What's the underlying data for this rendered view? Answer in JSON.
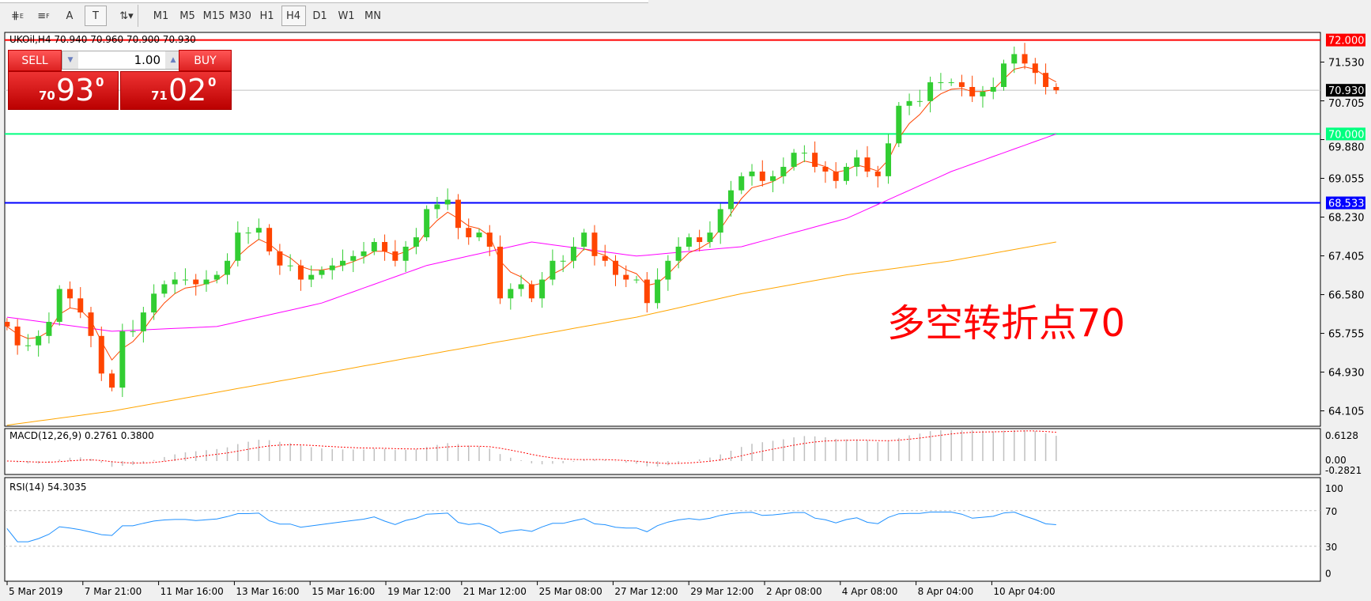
{
  "toolbar": {
    "tools": [
      {
        "name": "elliott-wave-icon",
        "glyph": "⋕",
        "sub": "E"
      },
      {
        "name": "fibonacci-icon",
        "glyph": "≡",
        "sub": "F"
      },
      {
        "name": "text-icon",
        "glyph": "A",
        "sub": ""
      },
      {
        "name": "text-label-icon",
        "glyph": "T",
        "sub": ""
      },
      {
        "name": "arrows-icon",
        "glyph": "⇅▾",
        "sub": ""
      }
    ],
    "timeframes": [
      "M1",
      "M5",
      "M15",
      "M30",
      "H1",
      "H4",
      "D1",
      "W1",
      "MN"
    ],
    "active_timeframe": "H4"
  },
  "chart_header": "UKOil,H4  70.940 70.960 70.900 70.930",
  "trade_panel": {
    "sell_label": "SELL",
    "buy_label": "BUY",
    "lot": "1.00",
    "sell_small": "70",
    "sell_big": "93",
    "sell_sup": "0",
    "buy_small": "71",
    "buy_big": "02",
    "buy_sup": "0"
  },
  "annotation": "多空转折点70",
  "colors": {
    "bull": "#32cd32",
    "bear": "#ff4500",
    "ma_fast": "#ff4500",
    "ma_mid": "#ff00ff",
    "ma_slow": "#ffa500",
    "rsi": "#1e90ff",
    "macd_signal": "#ff0000",
    "macd_hist": "#c0c0c0"
  },
  "chart_data": {
    "type": "candlestick",
    "symbol": "UKOil",
    "timeframe": "H4",
    "price_axis": {
      "ticks": [
        "71.530",
        "70.705",
        "69.880",
        "69.055",
        "68.230",
        "67.405",
        "66.580",
        "65.755",
        "64.930",
        "64.105"
      ],
      "range": [
        63.77,
        72.15
      ]
    },
    "horizontal_lines": [
      {
        "price": 72.0,
        "label": "72.000",
        "color": "#ff0000"
      },
      {
        "price": 70.0,
        "label": "70.000",
        "color": "#00ff7f"
      },
      {
        "price": 68.533,
        "label": "68.533",
        "color": "#0000ff"
      },
      {
        "price": 70.93,
        "label": "70.930",
        "color": "#000000",
        "current": true
      }
    ],
    "time_labels": [
      "5 Mar 2019",
      "7 Mar 21:00",
      "11 Mar 16:00",
      "13 Mar 16:00",
      "15 Mar 16:00",
      "19 Mar 12:00",
      "21 Mar 12:00",
      "25 Mar 08:00",
      "27 Mar 12:00",
      "29 Mar 12:00",
      "2 Apr 08:00",
      "4 Apr 08:00",
      "8 Apr 04:00",
      "10 Apr 04:00"
    ],
    "closes": [
      65.9,
      65.5,
      65.5,
      65.7,
      66.0,
      66.7,
      66.5,
      66.2,
      65.7,
      64.9,
      64.6,
      65.8,
      65.8,
      66.2,
      66.6,
      66.8,
      66.9,
      66.9,
      66.8,
      66.9,
      67.0,
      67.3,
      67.9,
      67.9,
      68.0,
      67.5,
      67.2,
      67.2,
      66.9,
      67.0,
      67.1,
      67.2,
      67.3,
      67.4,
      67.5,
      67.7,
      67.5,
      67.3,
      67.6,
      67.8,
      68.4,
      68.5,
      68.6,
      68.0,
      67.8,
      67.9,
      67.6,
      66.5,
      66.7,
      66.8,
      66.5,
      66.9,
      67.3,
      67.3,
      67.6,
      67.9,
      67.4,
      67.3,
      67.0,
      66.9,
      66.9,
      66.4,
      66.9,
      67.3,
      67.6,
      67.8,
      67.7,
      67.9,
      68.4,
      68.8,
      69.1,
      69.2,
      69.0,
      69.1,
      69.3,
      69.6,
      69.6,
      69.3,
      69.2,
      69.0,
      69.3,
      69.5,
      69.2,
      69.1,
      69.8,
      70.6,
      70.7,
      70.7,
      71.1,
      71.1,
      71.1,
      71.0,
      70.8,
      70.9,
      71.0,
      71.5,
      71.7,
      71.5,
      71.3,
      71.0,
      70.93
    ],
    "ma_mid": [
      66.1,
      65.8,
      65.9,
      66.4,
      67.2,
      67.7,
      67.4,
      67.6,
      68.2,
      69.2,
      70.0
    ],
    "ma_slow": [
      63.8,
      64.1,
      64.5,
      64.9,
      65.3,
      65.7,
      66.1,
      66.6,
      67.0,
      67.3,
      67.7
    ],
    "macd": {
      "label": "MACD(12,26,9) 0.2761 0.3800",
      "ticks": [
        "0.6128",
        "0.00",
        "-0.2821"
      ],
      "range": [
        -0.2821,
        0.6128
      ]
    },
    "rsi": {
      "label": "RSI(14) 54.3035",
      "ticks": [
        "100",
        "70",
        "30",
        "0"
      ],
      "levels": [
        70,
        30
      ]
    }
  }
}
